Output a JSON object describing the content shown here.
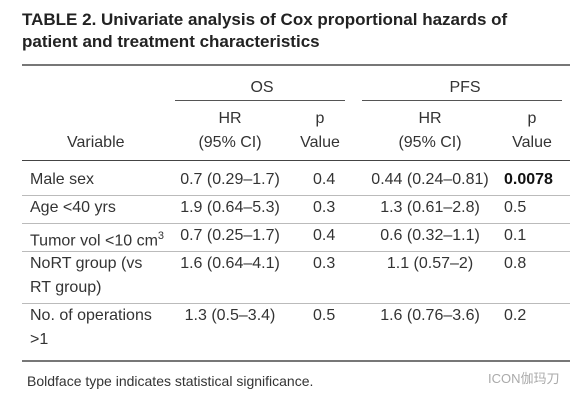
{
  "title": [
    "TABLE 2. Univariate analysis of Cox proportional hazards of",
    "patient and treatment characteristics"
  ],
  "header": {
    "groups": [
      "OS",
      "PFS"
    ],
    "variable": "Variable",
    "hr": [
      "HR",
      "(95% CI)"
    ],
    "p": [
      "p",
      "Value"
    ]
  },
  "rows": [
    {
      "variable": [
        "Male sex"
      ],
      "os_hr": "0.7 (0.29–1.7)",
      "os_p": "0.4",
      "pfs_hr": "0.44 (0.24–0.81)",
      "pfs_p": "0.0078",
      "bold": [
        "pfs_p"
      ]
    },
    {
      "variable": [
        "Age <40 yrs"
      ],
      "os_hr": "1.9 (0.64–5.3)",
      "os_p": "0.3",
      "pfs_hr": "1.3 (0.61–2.8)",
      "pfs_p": "0.5"
    },
    {
      "variable": [
        "Tumor vol <10 cm"
      ],
      "superscript": "3",
      "os_hr": "0.7 (0.25–1.7)",
      "os_p": "0.4",
      "pfs_hr": "0.6 (0.32–1.1)",
      "pfs_p": "0.1"
    },
    {
      "variable": [
        "NoRT group (vs",
        "RT group)"
      ],
      "os_hr": "1.6 (0.64–4.1)",
      "os_p": "0.3",
      "pfs_hr": "1.1 (0.57–2)",
      "pfs_p": "0.8"
    },
    {
      "variable": [
        "No. of operations",
        ">1"
      ],
      "os_hr": "1.3 (0.5–3.4)",
      "os_p": "0.5",
      "pfs_hr": "1.6 (0.76–3.6)",
      "pfs_p": "0.2"
    }
  ],
  "footnote": "Boldface type indicates statistical significance.",
  "watermark": "ICON伽玛刀"
}
